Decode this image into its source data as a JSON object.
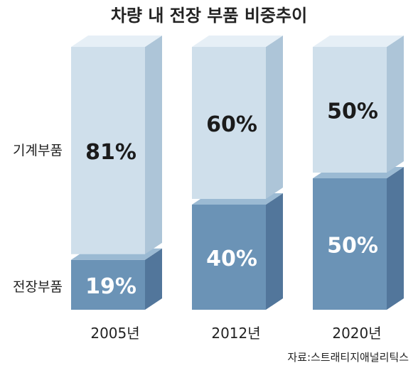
{
  "chart_data": {
    "type": "bar",
    "stacked": true,
    "title": "차량 내 전장 부품 비중추이",
    "categories": [
      "2005년",
      "2012년",
      "2020년"
    ],
    "series": [
      {
        "name": "전장부품",
        "values": [
          19,
          40,
          50
        ],
        "labels": [
          "19%",
          "40%",
          "50%"
        ]
      },
      {
        "name": "기계부품",
        "values": [
          81,
          60,
          50
        ],
        "labels": [
          "81%",
          "60%",
          "50%"
        ]
      }
    ],
    "ylim": [
      0,
      100
    ],
    "legend_position": "left",
    "source": "자료:스트래티지애널리틱스"
  },
  "colors": {
    "electrical_front": "#6b93b6",
    "electrical_side": "#52769b",
    "electrical_top": "#9bbad3",
    "mechanical_front": "#cfdfeb",
    "mechanical_side": "#adc5d8",
    "mechanical_top": "#e6eff6",
    "electrical_text": "#ffffff",
    "mechanical_text": "#1b1b1b"
  }
}
